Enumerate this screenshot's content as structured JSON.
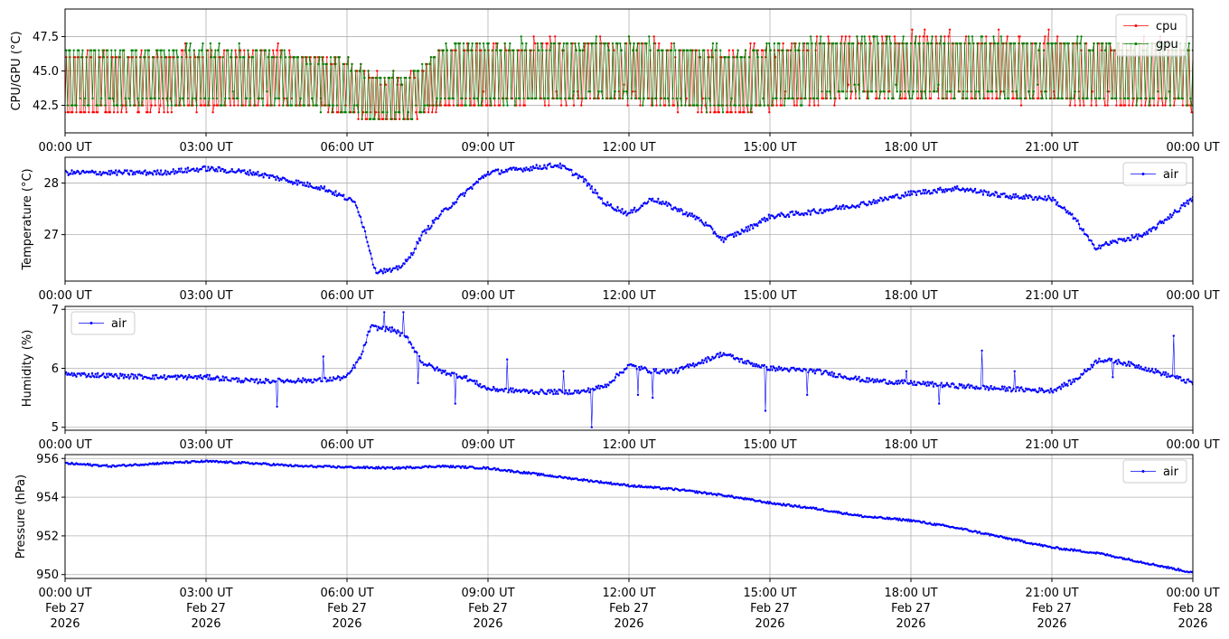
{
  "chart_data": [
    {
      "type": "line",
      "ylabel": "CPU/GPU (°C)",
      "yticks": [
        "42.5",
        "45.0",
        "47.5"
      ],
      "ytick_values": [
        42.5,
        45.0,
        47.5
      ],
      "ylim": [
        40.5,
        49.5
      ],
      "xticks": [
        "00:00 UT",
        "03:00 UT",
        "06:00 UT",
        "09:00 UT",
        "12:00 UT",
        "15:00 UT",
        "18:00 UT",
        "21:00 UT",
        "00:00 UT"
      ],
      "xlim_hours": [
        0,
        24
      ],
      "grid": true,
      "legend_loc": "upper right",
      "series": [
        {
          "name": "cpu",
          "color": "#ff0000",
          "pattern": "oscillating between ~43 and ~48 °C",
          "anchors": [
            [
              0,
              44.0
            ],
            [
              3,
              44.3
            ],
            [
              4.5,
              44.5
            ],
            [
              6,
              43.8
            ],
            [
              6.5,
              43.0
            ],
            [
              7.3,
              43.0
            ],
            [
              8,
              44.5
            ],
            [
              12,
              45.0
            ],
            [
              14,
              44.0
            ],
            [
              17,
              45.2
            ],
            [
              21,
              45.0
            ],
            [
              24,
              44.5
            ]
          ],
          "amp": [
            [
              0,
              2.3
            ],
            [
              6,
              2.0
            ],
            [
              6.7,
              1.5
            ],
            [
              7.3,
              1.6
            ],
            [
              8,
              2.2
            ],
            [
              12,
              2.3
            ],
            [
              24,
              2.3
            ]
          ]
        },
        {
          "name": "gpu",
          "color": "#008000",
          "pattern": "oscillating between ~43 and ~48 °C",
          "anchors": [
            [
              0,
              44.5
            ],
            [
              3,
              44.6
            ],
            [
              4.5,
              44.5
            ],
            [
              6,
              43.8
            ],
            [
              6.5,
              43.0
            ],
            [
              7.3,
              43.0
            ],
            [
              8,
              44.7
            ],
            [
              12,
              45.0
            ],
            [
              14,
              44.2
            ],
            [
              17,
              45.3
            ],
            [
              21,
              45.0
            ],
            [
              24,
              44.8
            ]
          ],
          "amp": [
            [
              0,
              2.2
            ],
            [
              6,
              1.9
            ],
            [
              6.7,
              1.5
            ],
            [
              7.3,
              1.6
            ],
            [
              8,
              2.1
            ],
            [
              12,
              2.2
            ],
            [
              24,
              2.2
            ]
          ]
        }
      ]
    },
    {
      "type": "line",
      "ylabel": "Temperature (°C)",
      "yticks": [
        "27",
        "28"
      ],
      "ytick_values": [
        27,
        28
      ],
      "ylim": [
        26.1,
        28.5
      ],
      "xticks": [
        "00:00 UT",
        "03:00 UT",
        "06:00 UT",
        "09:00 UT",
        "12:00 UT",
        "15:00 UT",
        "18:00 UT",
        "21:00 UT",
        "00:00 UT"
      ],
      "xlim_hours": [
        0,
        24
      ],
      "grid": true,
      "legend_loc": "upper right",
      "series": [
        {
          "name": "air",
          "color": "#0000ff",
          "anchors": [
            [
              0,
              28.2
            ],
            [
              1,
              28.2
            ],
            [
              2,
              28.2
            ],
            [
              3,
              28.28
            ],
            [
              4,
              28.2
            ],
            [
              5,
              28.0
            ],
            [
              5.5,
              27.9
            ],
            [
              6,
              27.7
            ],
            [
              6.2,
              27.6
            ],
            [
              6.4,
              27.0
            ],
            [
              6.6,
              26.3
            ],
            [
              7,
              26.3
            ],
            [
              7.3,
              26.5
            ],
            [
              7.6,
              27.0
            ],
            [
              8,
              27.4
            ],
            [
              8.5,
              27.8
            ],
            [
              9,
              28.2
            ],
            [
              10,
              28.3
            ],
            [
              10.5,
              28.35
            ],
            [
              11,
              28.1
            ],
            [
              11.5,
              27.6
            ],
            [
              12,
              27.4
            ],
            [
              12.5,
              27.7
            ],
            [
              13,
              27.5
            ],
            [
              13.5,
              27.3
            ],
            [
              14,
              26.9
            ],
            [
              14.5,
              27.1
            ],
            [
              15,
              27.35
            ],
            [
              16,
              27.45
            ],
            [
              17,
              27.6
            ],
            [
              18,
              27.8
            ],
            [
              19,
              27.9
            ],
            [
              20,
              27.75
            ],
            [
              21,
              27.7
            ],
            [
              21.5,
              27.3
            ],
            [
              21.9,
              26.75
            ],
            [
              22.5,
              26.9
            ],
            [
              23,
              27.0
            ],
            [
              24,
              27.7
            ]
          ]
        }
      ]
    },
    {
      "type": "line",
      "ylabel": "Humidity (%)",
      "yticks": [
        "5",
        "6",
        "7"
      ],
      "ytick_values": [
        5,
        6,
        7
      ],
      "ylim": [
        4.95,
        7.05
      ],
      "xticks": [
        "00:00 UT",
        "03:00 UT",
        "06:00 UT",
        "09:00 UT",
        "12:00 UT",
        "15:00 UT",
        "18:00 UT",
        "21:00 UT",
        "00:00 UT"
      ],
      "xlim_hours": [
        0,
        24
      ],
      "grid": true,
      "legend_loc": "upper left",
      "series": [
        {
          "name": "air",
          "color": "#0000ff",
          "anchors": [
            [
              0,
              5.9
            ],
            [
              2,
              5.85
            ],
            [
              3,
              5.85
            ],
            [
              4,
              5.78
            ],
            [
              5.5,
              5.8
            ],
            [
              6,
              5.85
            ],
            [
              6.3,
              6.2
            ],
            [
              6.5,
              6.7
            ],
            [
              7,
              6.65
            ],
            [
              7.3,
              6.5
            ],
            [
              7.6,
              6.1
            ],
            [
              8,
              5.95
            ],
            [
              8.5,
              5.85
            ],
            [
              9,
              5.65
            ],
            [
              10,
              5.6
            ],
            [
              11,
              5.6
            ],
            [
              11.5,
              5.7
            ],
            [
              12,
              6.05
            ],
            [
              12.5,
              5.95
            ],
            [
              13,
              5.95
            ],
            [
              13.5,
              6.1
            ],
            [
              14,
              6.25
            ],
            [
              14.5,
              6.1
            ],
            [
              15,
              6.0
            ],
            [
              16,
              5.95
            ],
            [
              17,
              5.8
            ],
            [
              18,
              5.75
            ],
            [
              19,
              5.7
            ],
            [
              20,
              5.65
            ],
            [
              21,
              5.62
            ],
            [
              21.5,
              5.8
            ],
            [
              22,
              6.15
            ],
            [
              22.5,
              6.1
            ],
            [
              23,
              6.0
            ],
            [
              24,
              5.75
            ]
          ],
          "spikes": [
            [
              4.5,
              5.35
            ],
            [
              5.5,
              6.2
            ],
            [
              6.8,
              6.95
            ],
            [
              7.2,
              6.95
            ],
            [
              7.5,
              5.75
            ],
            [
              8.3,
              5.4
            ],
            [
              9.4,
              6.15
            ],
            [
              10.6,
              5.95
            ],
            [
              11.2,
              5.0
            ],
            [
              12.2,
              5.55
            ],
            [
              12.5,
              5.5
            ],
            [
              14.9,
              5.28
            ],
            [
              15.8,
              5.55
            ],
            [
              17.9,
              5.95
            ],
            [
              18.6,
              5.4
            ],
            [
              19.5,
              6.3
            ],
            [
              20.2,
              5.95
            ],
            [
              22.3,
              5.85
            ],
            [
              23.6,
              6.55
            ]
          ]
        }
      ]
    },
    {
      "type": "line",
      "ylabel": "Pressure (hPa)",
      "yticks": [
        "950",
        "952",
        "954",
        "956"
      ],
      "ytick_values": [
        950,
        952,
        954,
        956
      ],
      "ylim": [
        949.8,
        956.2
      ],
      "xticks": [
        "00:00 UT",
        "03:00 UT",
        "06:00 UT",
        "09:00 UT",
        "12:00 UT",
        "15:00 UT",
        "18:00 UT",
        "21:00 UT",
        "00:00 UT"
      ],
      "xticks_line2": [
        "Feb 27",
        "Feb 27",
        "Feb 27",
        "Feb 27",
        "Feb 27",
        "Feb 27",
        "Feb 27",
        "Feb 27",
        "Feb 28"
      ],
      "xticks_line3": [
        "2026",
        "2026",
        "2026",
        "2026",
        "2026",
        "2026",
        "2026",
        "2026",
        "2026"
      ],
      "xlim_hours": [
        0,
        24
      ],
      "grid": true,
      "legend_loc": "upper right",
      "series": [
        {
          "name": "air",
          "color": "#0000ff",
          "anchors": [
            [
              0,
              955.75
            ],
            [
              1,
              955.6
            ],
            [
              2,
              955.75
            ],
            [
              3,
              955.85
            ],
            [
              4,
              955.75
            ],
            [
              5,
              955.6
            ],
            [
              6,
              955.55
            ],
            [
              7,
              955.5
            ],
            [
              8,
              955.6
            ],
            [
              9,
              955.5
            ],
            [
              10,
              955.2
            ],
            [
              11,
              954.9
            ],
            [
              12,
              954.6
            ],
            [
              13,
              954.4
            ],
            [
              14,
              954.1
            ],
            [
              15,
              953.7
            ],
            [
              16,
              953.4
            ],
            [
              17,
              953.0
            ],
            [
              18,
              952.8
            ],
            [
              19,
              952.4
            ],
            [
              20,
              951.9
            ],
            [
              21,
              951.4
            ],
            [
              22,
              951.1
            ],
            [
              23,
              950.6
            ],
            [
              24,
              950.1
            ]
          ]
        }
      ]
    }
  ]
}
